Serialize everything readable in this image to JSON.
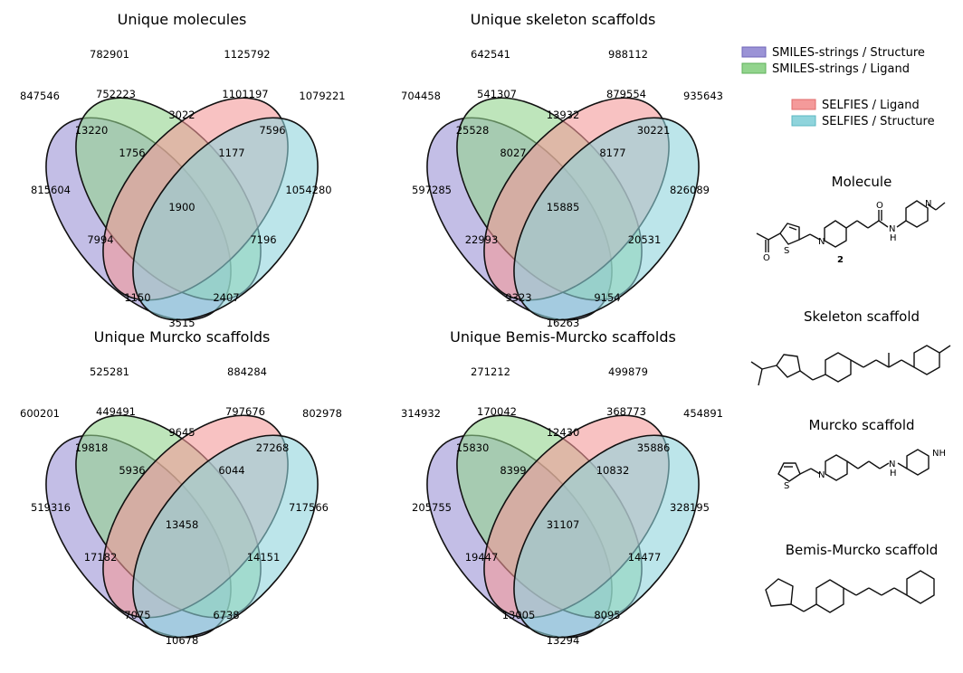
{
  "colors": {
    "structure_smiles": "#9b93d6",
    "ligand_smiles": "#92d48d",
    "ligand_selfies": "#f49a9a",
    "structure_selfies": "#8fd4dc"
  },
  "legend": [
    {
      "label": "SMILES-strings / Structure",
      "color": "#9b93d6"
    },
    {
      "label": "SMILES-strings / Ligand",
      "color": "#92d48d"
    },
    {
      "label": "SELFIES / Ligand",
      "color": "#f49a9a"
    },
    {
      "label": "SELFIES / Structure",
      "color": "#8fd4dc"
    }
  ],
  "venns": [
    {
      "title": "Unique molecules",
      "totals": [
        "847546",
        "782901",
        "1125792",
        "1079221"
      ],
      "regions": {
        "A": "815604",
        "B": "752223",
        "C": "1101197",
        "D": "1054280",
        "AB": "13220",
        "BC": "3022",
        "CD": "7596",
        "AC": "7994",
        "BD": "7196",
        "AD": "3515",
        "ABC": "1756",
        "BCD": "1177",
        "ACD": "1150",
        "ABD": "2407",
        "ABCD": "1900"
      }
    },
    {
      "title": "Unique skeleton scaffolds",
      "totals": [
        "704458",
        "642541",
        "988112",
        "935643"
      ],
      "regions": {
        "A": "597285",
        "B": "541307",
        "C": "879554",
        "D": "826089",
        "AB": "25528",
        "BC": "13932",
        "CD": "30221",
        "AC": "22993",
        "BD": "20531",
        "AD": "16263",
        "ABC": "8027",
        "BCD": "8177",
        "ACD": "9323",
        "ABD": "9154",
        "ABCD": "15885"
      }
    },
    {
      "title": "Unique Murcko scaffolds",
      "totals": [
        "600201",
        "525281",
        "884284",
        "802978"
      ],
      "regions": {
        "A": "519316",
        "B": "449491",
        "C": "797676",
        "D": "717566",
        "AB": "19818",
        "BC": "9645",
        "CD": "27268",
        "AC": "17182",
        "BD": "14151",
        "AD": "10678",
        "ABC": "5936",
        "BCD": "6044",
        "ACD": "7075",
        "ABD": "6738",
        "ABCD": "13458"
      }
    },
    {
      "title": "Unique Bemis-Murcko scaffolds",
      "totals": [
        "314932",
        "271212",
        "499879",
        "454891"
      ],
      "regions": {
        "A": "205755",
        "B": "170042",
        "C": "368773",
        "D": "328195",
        "AB": "15830",
        "BC": "12430",
        "CD": "35886",
        "AC": "19447",
        "BD": "14477",
        "AD": "13294",
        "ABC": "8399",
        "BCD": "10832",
        "ACD": "13005",
        "ABD": "8095",
        "ABCD": "31107"
      }
    }
  ],
  "side_panels": {
    "molecule": {
      "title": "Molecule",
      "compound_label": "2",
      "atoms": {
        "o1": "O",
        "s": "S",
        "n1": "N",
        "o2": "O",
        "nh": "N",
        "h": "H",
        "n2": "N"
      }
    },
    "skeleton": {
      "title": "Skeleton scaffold"
    },
    "murcko": {
      "title": "Murcko scaffold",
      "atoms": {
        "s": "S",
        "n1": "N",
        "nh1": "N",
        "h1": "H",
        "nh2": "NH"
      }
    },
    "bemis": {
      "title": "Bemis-Murcko scaffold"
    }
  }
}
